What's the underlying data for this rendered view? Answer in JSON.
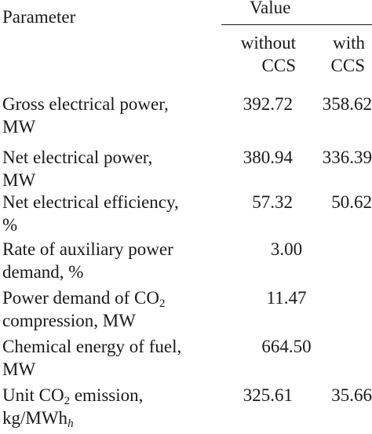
{
  "header": {
    "parameter": "Parameter",
    "value": "Value",
    "without_l1": "without",
    "without_l2": "CCS",
    "with_l1": "with",
    "with_l2": "CCS"
  },
  "rows": [
    {
      "l1": "Gross electrical power,",
      "l2": "MW",
      "without": "392.72",
      "with": "358.62"
    },
    {
      "l1": "Net electrical power,",
      "l2": "MW",
      "without": "380.94",
      "with": "336.39"
    },
    {
      "l1": "Net electrical efficiency,",
      "l2": "%",
      "without": "57.32",
      "with": "50.62"
    },
    {
      "l1": "Rate of auxiliary power",
      "l2": "demand, %",
      "value": "3.00"
    },
    {
      "l1a": "Power demand of CO",
      "l1sub": "2",
      "l2": "compression, MW",
      "value": "11.47"
    },
    {
      "l1": "Chemical energy of fuel,",
      "l2": "MW",
      "value": "664.50"
    },
    {
      "l1a": "Unit CO",
      "l1sub": "2",
      "l1b": " emission,",
      "l2a": "kg/MWh",
      "l2sub": "h",
      "without": "325.61",
      "with": "35.66"
    }
  ]
}
